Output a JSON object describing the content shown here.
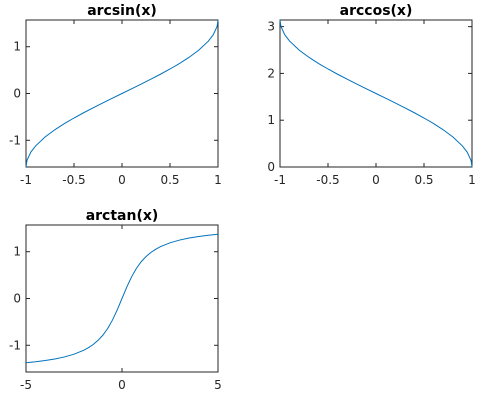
{
  "chart_data": [
    {
      "type": "line",
      "title": "arcsin(x)",
      "xlabel": "",
      "ylabel": "",
      "xlim": [
        -1,
        1
      ],
      "ylim": [
        -1.5708,
        1.5708
      ],
      "xticks": [
        -1,
        -0.5,
        0,
        0.5,
        1
      ],
      "xtick_labels": [
        "-1",
        "-0.5",
        "0",
        "0.5",
        "1"
      ],
      "yticks": [
        -1,
        0,
        1
      ],
      "ytick_labels": [
        "-1",
        "0",
        "1"
      ],
      "grid": false,
      "color": "#0072bd",
      "series": [
        {
          "x": [
            -1,
            -0.99,
            -0.95,
            -0.9,
            -0.8,
            -0.7,
            -0.6,
            -0.5,
            -0.4,
            -0.3,
            -0.2,
            -0.1,
            0,
            0.1,
            0.2,
            0.3,
            0.4,
            0.5,
            0.6,
            0.7,
            0.8,
            0.9,
            0.95,
            0.99,
            1
          ],
          "y": [
            -1.5708,
            -1.4293,
            -1.2532,
            -1.1198,
            -0.9273,
            -0.7754,
            -0.6435,
            -0.5236,
            -0.4115,
            -0.3047,
            -0.2014,
            -0.1002,
            0,
            0.1002,
            0.2014,
            0.3047,
            0.4115,
            0.5236,
            0.6435,
            0.7754,
            0.9273,
            1.1198,
            1.2532,
            1.4293,
            1.5708
          ]
        }
      ]
    },
    {
      "type": "line",
      "title": "arccos(x)",
      "xlabel": "",
      "ylabel": "",
      "xlim": [
        -1,
        1
      ],
      "ylim": [
        0,
        3.1416
      ],
      "xticks": [
        -1,
        -0.5,
        0,
        0.5,
        1
      ],
      "xtick_labels": [
        "-1",
        "-0.5",
        "0",
        "0.5",
        "1"
      ],
      "yticks": [
        0,
        1,
        2,
        3
      ],
      "ytick_labels": [
        "0",
        "1",
        "2",
        "3"
      ],
      "grid": false,
      "color": "#0072bd",
      "series": [
        {
          "x": [
            -1,
            -0.99,
            -0.95,
            -0.9,
            -0.8,
            -0.7,
            -0.6,
            -0.5,
            -0.4,
            -0.3,
            -0.2,
            -0.1,
            0,
            0.1,
            0.2,
            0.3,
            0.4,
            0.5,
            0.6,
            0.7,
            0.8,
            0.9,
            0.95,
            0.99,
            1
          ],
          "y": [
            3.1416,
            3.0001,
            2.824,
            2.6906,
            2.4981,
            2.3462,
            2.2143,
            2.0944,
            1.9823,
            1.8755,
            1.7722,
            1.671,
            1.5708,
            1.4706,
            1.3694,
            1.2661,
            1.1593,
            1.0472,
            0.9273,
            0.7954,
            0.6435,
            0.451,
            0.3176,
            0.1415,
            0
          ]
        }
      ]
    },
    {
      "type": "line",
      "title": "arctan(x)",
      "xlabel": "",
      "ylabel": "",
      "xlim": [
        -5,
        5
      ],
      "ylim": [
        -1.5708,
        1.5708
      ],
      "xticks": [
        -5,
        0,
        5
      ],
      "xtick_labels": [
        "-5",
        "0",
        "5"
      ],
      "yticks": [
        -1,
        0,
        1
      ],
      "ytick_labels": [
        "-1",
        "0",
        "1"
      ],
      "grid": false,
      "color": "#0072bd",
      "series": [
        {
          "x": [
            -5,
            -4.5,
            -4,
            -3.5,
            -3,
            -2.5,
            -2,
            -1.75,
            -1.5,
            -1.25,
            -1,
            -0.75,
            -0.5,
            -0.25,
            0,
            0.25,
            0.5,
            0.75,
            1,
            1.25,
            1.5,
            1.75,
            2,
            2.5,
            3,
            3.5,
            4,
            4.5,
            5
          ],
          "y": [
            -1.3734,
            -1.3521,
            -1.3258,
            -1.2925,
            -1.249,
            -1.1903,
            -1.1071,
            -1.0517,
            -0.9828,
            -0.8961,
            -0.7854,
            -0.6435,
            -0.4636,
            -0.245,
            0,
            0.245,
            0.4636,
            0.6435,
            0.7854,
            0.8961,
            0.9828,
            1.0517,
            1.1071,
            1.1903,
            1.249,
            1.2925,
            1.3258,
            1.3521,
            1.3734
          ]
        }
      ]
    }
  ]
}
